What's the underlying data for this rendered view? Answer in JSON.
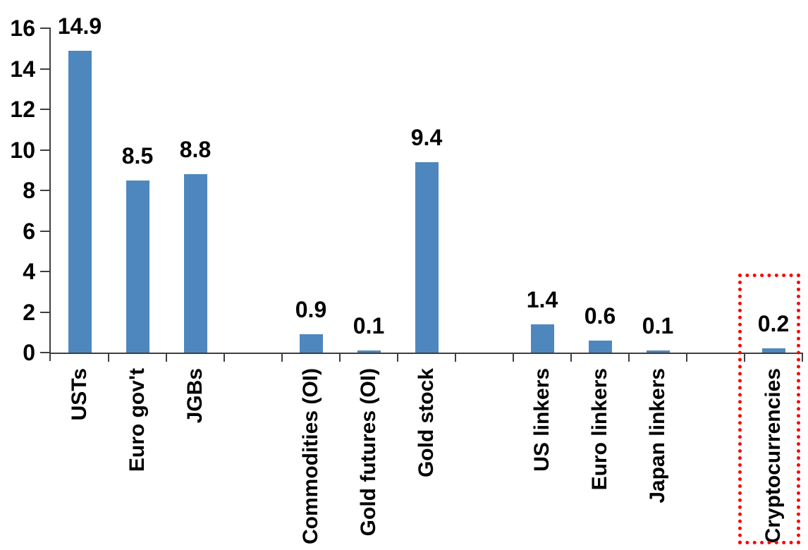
{
  "chart_data": {
    "type": "bar",
    "title": "",
    "xlabel": "",
    "ylabel": "",
    "categories": [
      "USTs",
      "Euro gov't",
      "JGBs",
      "",
      "Commodities (OI)",
      "Gold futures (OI)",
      "Gold stock",
      "",
      "US linkers",
      "Euro linkers",
      "Japan linkers",
      "",
      "Cryptocurrencies"
    ],
    "values": [
      14.9,
      8.5,
      8.8,
      null,
      0.9,
      0.1,
      9.4,
      null,
      1.4,
      0.6,
      0.1,
      null,
      0.2
    ],
    "data_labels": [
      "14.9",
      "8.5",
      "8.8",
      "",
      "0.9",
      "0.1",
      "9.4",
      "",
      "1.4",
      "0.6",
      "0.1",
      "",
      "0.2"
    ],
    "yticks": [
      "16",
      "14",
      "12",
      "10",
      "8",
      "6",
      "4",
      "2",
      "0"
    ],
    "ytick_values": [
      16,
      14,
      12,
      10,
      8,
      6,
      4,
      2,
      0
    ],
    "ylim": [
      0,
      16
    ],
    "grid": false,
    "legend": "none",
    "bar_color": "#4E87BE",
    "axis_color": "#3f3f3f",
    "text_color": "#000000",
    "highlight_box": {
      "target": "Cryptocurrencies",
      "style": "dotted",
      "color": "#FF0000"
    }
  }
}
